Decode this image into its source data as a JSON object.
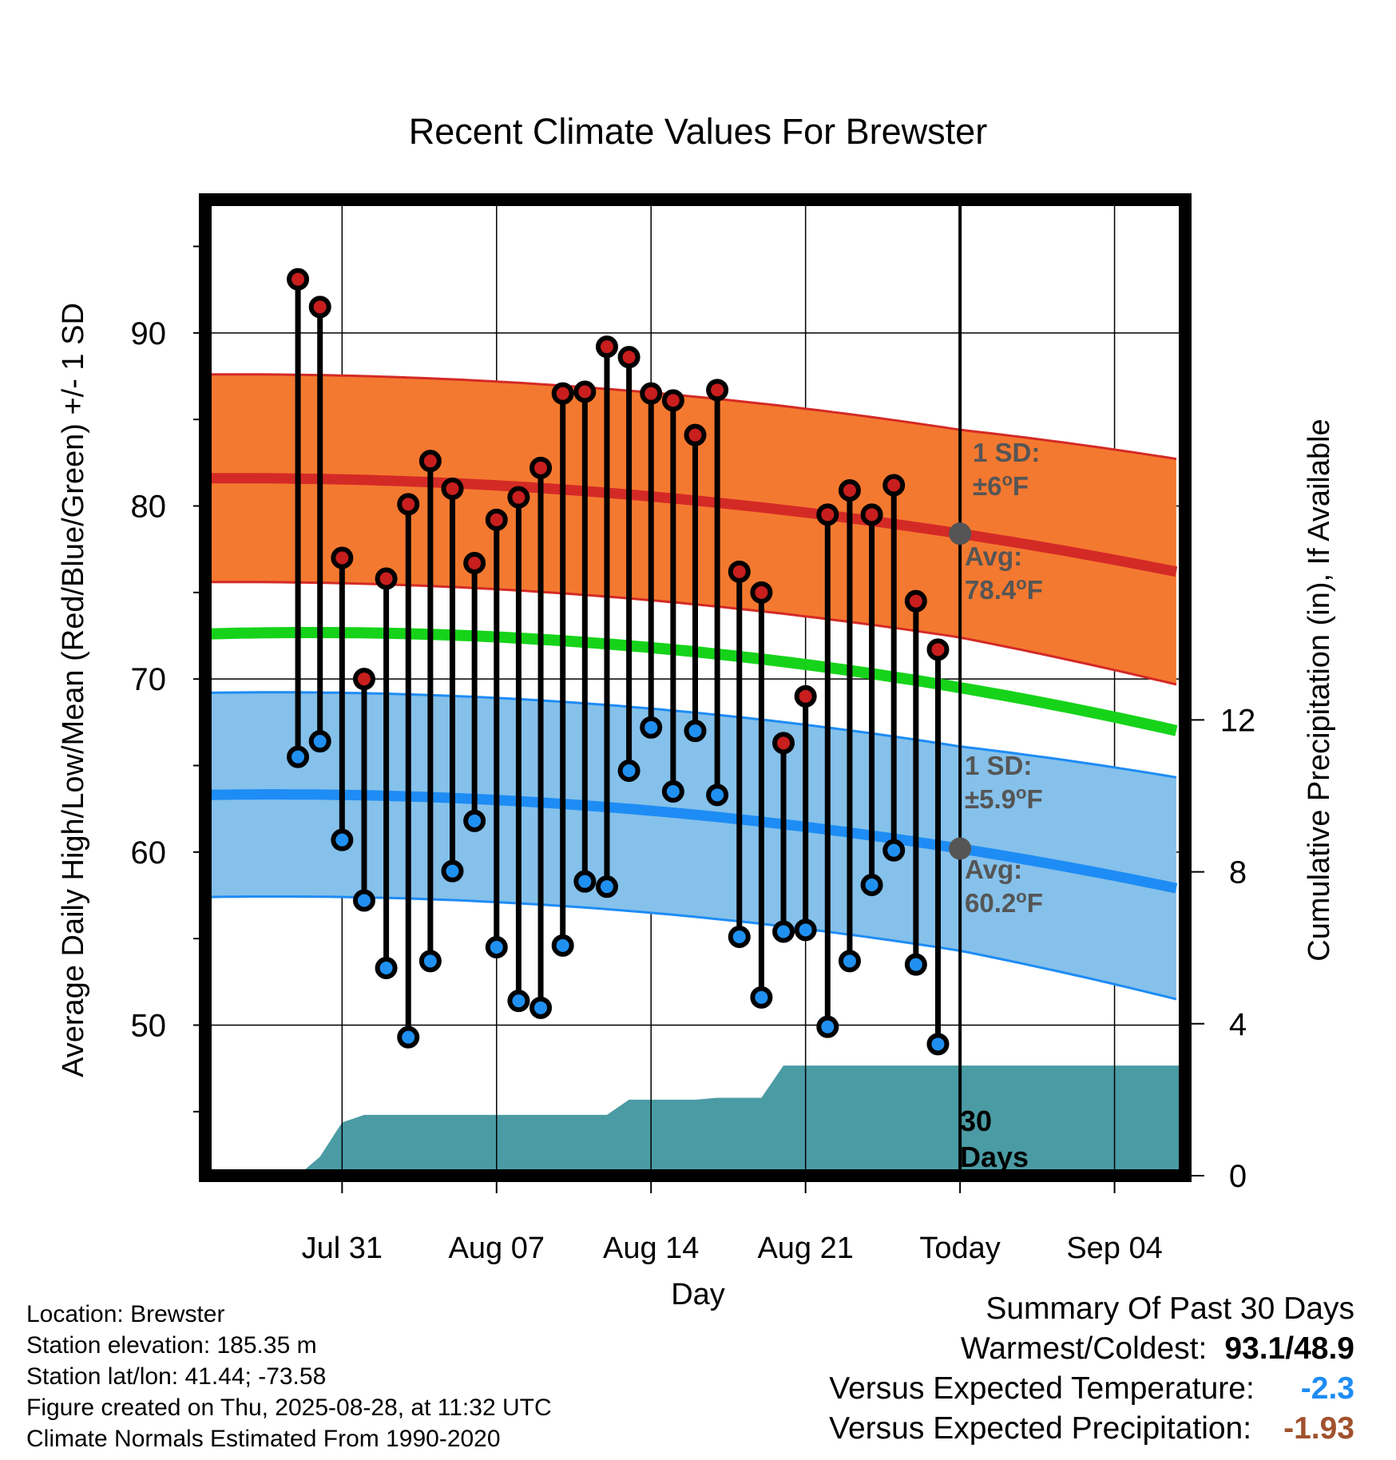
{
  "chart_data": {
    "type": "line",
    "title": "Recent Climate Values For Brewster",
    "xlabel": "Day",
    "ylabel_left": "Average Daily High/Low/Mean (Red/Blue/Green) +/- 1 SD",
    "ylabel_right": "Cumulative Precipitation (in), If Available",
    "x_tick_labels": [
      "Jul 31",
      "Aug 07",
      "Aug 14",
      "Aug 21",
      "Today",
      "Sep 04"
    ],
    "x_range_days": [
      -34.2,
      10.2
    ],
    "x_tick_days": [
      -28,
      -21,
      -14,
      -7,
      0,
      7
    ],
    "ylim_left": [
      41.3,
      97.7
    ],
    "yticks_left": [
      50,
      60,
      70,
      80,
      90
    ],
    "ylim_right": [
      0,
      25.7
    ],
    "yticks_right": [
      0,
      4,
      8,
      12
    ],
    "grid": true,
    "normals": {
      "high_avg_start": 81.6,
      "high_avg_today": 78.4,
      "high_avg_end": 76.1,
      "high_sd": 6,
      "low_avg_start": 63.3,
      "low_avg_today": 60.2,
      "low_avg_end": 57.8,
      "low_sd": 5.9,
      "mean_start": 72.6,
      "mean_today": 69.5,
      "mean_end": 66.9
    },
    "daily": {
      "day": [
        -30,
        -29,
        -28,
        -27,
        -26,
        -25,
        -24,
        -23,
        -22,
        -21,
        -20,
        -19,
        -18,
        -17,
        -16,
        -15,
        -14,
        -13,
        -12,
        -11,
        -10,
        -9,
        -8,
        -7,
        -6,
        -5,
        -4,
        -3,
        -2,
        -1
      ],
      "high": [
        93.1,
        91.5,
        77.0,
        70.0,
        75.8,
        80.1,
        82.6,
        81.0,
        76.7,
        79.2,
        80.5,
        82.2,
        86.5,
        86.6,
        89.2,
        88.6,
        86.5,
        86.1,
        84.1,
        86.7,
        76.2,
        75.0,
        66.3,
        69.0,
        79.5,
        80.9,
        79.5,
        81.2,
        74.5,
        71.7
      ],
      "low": [
        65.5,
        66.4,
        60.7,
        57.2,
        53.3,
        49.3,
        53.7,
        58.9,
        61.8,
        54.5,
        51.4,
        51.0,
        54.6,
        58.3,
        58.0,
        64.7,
        67.2,
        63.5,
        67.0,
        63.3,
        55.1,
        51.6,
        55.4,
        55.5,
        49.9,
        53.7,
        58.1,
        60.1,
        53.5,
        48.9
      ]
    },
    "precip_cumulative": {
      "day": [
        -30,
        -29,
        -28,
        -27,
        -26,
        -25,
        -24,
        -23,
        -22,
        -21,
        -20,
        -19,
        -18,
        -17,
        -16,
        -15,
        -14,
        -13,
        -12,
        -11,
        -10,
        -9,
        -8,
        -7,
        -6,
        -5,
        -4,
        -3,
        -2,
        -1,
        0,
        10
      ],
      "value": [
        0.0,
        0.5,
        1.4,
        1.6,
        1.6,
        1.6,
        1.6,
        1.6,
        1.6,
        1.6,
        1.6,
        1.6,
        1.6,
        1.6,
        1.6,
        2.0,
        2.0,
        2.0,
        2.0,
        2.05,
        2.05,
        2.05,
        2.9,
        2.9,
        2.9,
        2.9,
        2.9,
        2.9,
        2.9,
        2.9,
        2.9,
        2.9
      ]
    },
    "annotations": {
      "high_sd_label": "1 SD:",
      "high_sd_value": "±6",
      "high_avg_label": "Avg:",
      "high_avg_value": "78.4",
      "low_sd_label": "1 SD:",
      "low_sd_value": "±5.9",
      "low_avg_label": "Avg:",
      "low_avg_value": "60.2",
      "degree_mark": "o",
      "unit": "F",
      "period_line1": "30",
      "period_line2": "Days"
    },
    "colors": {
      "high_band": "#f47930",
      "high_line": "#d42a26",
      "low_band": "#85c1ea",
      "low_line": "#1e8cf5",
      "mean_line": "#16d31a",
      "precip": "#4a9ba4",
      "high_marker": "#c81e1e",
      "low_marker": "#2090f0",
      "annotation_text": "#555555"
    }
  },
  "info": {
    "location": "Location: Brewster",
    "elevation": "Station elevation: 185.35 m",
    "latlon": "Station lat/lon: 41.44; -73.58",
    "created": "Figure created on Thu, 2025-08-28, at 11:32 UTC",
    "normals": "Climate Normals Estimated From 1990-2020"
  },
  "summary": {
    "title": "Summary Of Past 30 Days",
    "warmest_label": "Warmest/Coldest:",
    "warmest_value": "93.1/48.9",
    "temp_label": "Versus Expected Temperature:",
    "temp_value": "-2.3",
    "temp_color": "#1e8cf5",
    "precip_label": "Versus Expected Precipitation:",
    "precip_value": "-1.93",
    "precip_color": "#a0522d"
  }
}
